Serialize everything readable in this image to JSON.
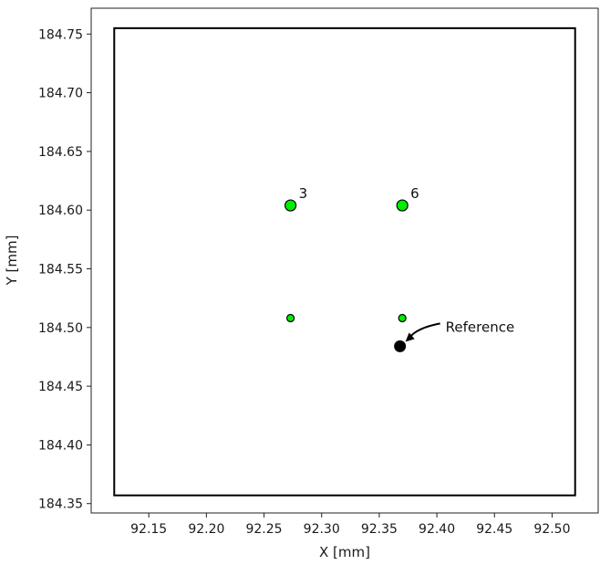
{
  "chart_data": {
    "type": "scatter",
    "title": "",
    "xlabel": "X [mm]",
    "ylabel": "Y [mm]",
    "xlim": [
      92.1,
      92.54
    ],
    "ylim": [
      184.772,
      184.342
    ],
    "y_inverted": true,
    "grid": false,
    "x_ticks": [
      "92.15",
      "92.20",
      "92.25",
      "92.30",
      "92.35",
      "92.40",
      "92.45",
      "92.50"
    ],
    "y_ticks": [
      "184.35",
      "184.40",
      "184.45",
      "184.50",
      "184.55",
      "184.60",
      "184.65",
      "184.70",
      "184.75"
    ],
    "boundary": {
      "x": [
        92.12,
        92.52
      ],
      "y": [
        184.357,
        184.755
      ]
    },
    "points": [
      {
        "x": 92.273,
        "y": 184.508,
        "size": "small",
        "color": "#00ee00",
        "label": ""
      },
      {
        "x": 92.37,
        "y": 184.508,
        "size": "small",
        "color": "#00ee00",
        "label": ""
      },
      {
        "x": 92.273,
        "y": 184.604,
        "size": "large",
        "color": "#00ee00",
        "label": "3"
      },
      {
        "x": 92.37,
        "y": 184.604,
        "size": "large",
        "color": "#00ee00",
        "label": "6"
      }
    ],
    "reference": {
      "x": 92.368,
      "y": 184.484,
      "color": "#000000",
      "label": "Reference"
    }
  }
}
